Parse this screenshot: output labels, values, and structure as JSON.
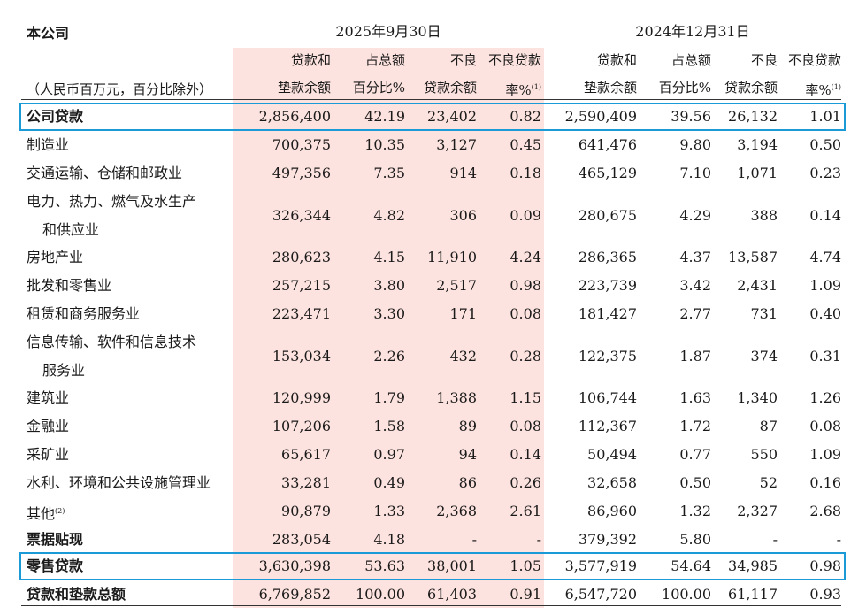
{
  "table": {
    "title": "本公司",
    "unit_note": "（人民币百万元，百分比除外）",
    "periods": [
      "2025年9月30日",
      "2024年12月31日"
    ],
    "col_headers": [
      {
        "l1": "贷款和",
        "l2": "垫款余额",
        "sup": ""
      },
      {
        "l1": "占总额",
        "l2": "百分比%",
        "sup": ""
      },
      {
        "l1": "不良",
        "l2": "贷款余额",
        "sup": ""
      },
      {
        "l1": "不良贷款",
        "l2": "率%",
        "sup": "(1)"
      },
      {
        "l1": "贷款和",
        "l2": "垫款余额",
        "sup": ""
      },
      {
        "l1": "占总额",
        "l2": "百分比%",
        "sup": ""
      },
      {
        "l1": "不良",
        "l2": "贷款余额",
        "sup": ""
      },
      {
        "l1": "不良贷款",
        "l2": "率%",
        "sup": "(1)"
      }
    ],
    "rows": [
      {
        "label": "公司贷款",
        "label2": "",
        "sup": "",
        "bold": true,
        "hl": true,
        "v": [
          "2,856,400",
          "42.19",
          "23,402",
          "0.82",
          "2,590,409",
          "39.56",
          "26,132",
          "1.01"
        ]
      },
      {
        "label": "制造业",
        "label2": "",
        "sup": "",
        "bold": false,
        "hl": false,
        "v": [
          "700,375",
          "10.35",
          "3,127",
          "0.45",
          "641,476",
          "9.80",
          "3,194",
          "0.50"
        ]
      },
      {
        "label": "交通运输、仓储和邮政业",
        "label2": "",
        "sup": "",
        "bold": false,
        "hl": false,
        "v": [
          "497,356",
          "7.35",
          "914",
          "0.18",
          "465,129",
          "7.10",
          "1,071",
          "0.23"
        ]
      },
      {
        "label": "电力、热力、燃气及水生产",
        "label2": "和供应业",
        "sup": "",
        "bold": false,
        "hl": false,
        "v": [
          "326,344",
          "4.82",
          "306",
          "0.09",
          "280,675",
          "4.29",
          "388",
          "0.14"
        ]
      },
      {
        "label": "房地产业",
        "label2": "",
        "sup": "",
        "bold": false,
        "hl": false,
        "v": [
          "280,623",
          "4.15",
          "11,910",
          "4.24",
          "286,365",
          "4.37",
          "13,587",
          "4.74"
        ]
      },
      {
        "label": "批发和零售业",
        "label2": "",
        "sup": "",
        "bold": false,
        "hl": false,
        "v": [
          "257,215",
          "3.80",
          "2,517",
          "0.98",
          "223,739",
          "3.42",
          "2,431",
          "1.09"
        ]
      },
      {
        "label": "租赁和商务服务业",
        "label2": "",
        "sup": "",
        "bold": false,
        "hl": false,
        "v": [
          "223,471",
          "3.30",
          "171",
          "0.08",
          "181,427",
          "2.77",
          "731",
          "0.40"
        ]
      },
      {
        "label": "信息传输、软件和信息技术",
        "label2": "服务业",
        "sup": "",
        "bold": false,
        "hl": false,
        "v": [
          "153,034",
          "2.26",
          "432",
          "0.28",
          "122,375",
          "1.87",
          "374",
          "0.31"
        ]
      },
      {
        "label": "建筑业",
        "label2": "",
        "sup": "",
        "bold": false,
        "hl": false,
        "v": [
          "120,999",
          "1.79",
          "1,388",
          "1.15",
          "106,744",
          "1.63",
          "1,340",
          "1.26"
        ]
      },
      {
        "label": "金融业",
        "label2": "",
        "sup": "",
        "bold": false,
        "hl": false,
        "v": [
          "107,206",
          "1.58",
          "89",
          "0.08",
          "112,367",
          "1.72",
          "87",
          "0.08"
        ]
      },
      {
        "label": "采矿业",
        "label2": "",
        "sup": "",
        "bold": false,
        "hl": false,
        "v": [
          "65,617",
          "0.97",
          "94",
          "0.14",
          "50,494",
          "0.77",
          "550",
          "1.09"
        ]
      },
      {
        "label": "水利、环境和公共设施管理业",
        "label2": "",
        "sup": "",
        "bold": false,
        "hl": false,
        "v": [
          "33,281",
          "0.49",
          "86",
          "0.26",
          "32,658",
          "0.50",
          "52",
          "0.16"
        ]
      },
      {
        "label": "其他",
        "label2": "",
        "sup": "(2)",
        "bold": false,
        "hl": false,
        "v": [
          "90,879",
          "1.33",
          "2,368",
          "2.61",
          "86,960",
          "1.32",
          "2,327",
          "2.68"
        ]
      },
      {
        "label": "票据贴现",
        "label2": "",
        "sup": "",
        "bold": true,
        "hl": false,
        "v": [
          "283,054",
          "4.18",
          "-",
          "-",
          "379,392",
          "5.80",
          "-",
          "-"
        ]
      },
      {
        "label": "零售贷款",
        "label2": "",
        "sup": "",
        "bold": true,
        "hl": true,
        "v": [
          "3,630,398",
          "53.63",
          "38,001",
          "1.05",
          "3,577,919",
          "54.64",
          "34,985",
          "0.98"
        ]
      },
      {
        "label": "贷款和垫款总额",
        "label2": "",
        "sup": "",
        "bold": true,
        "hl": false,
        "v": [
          "6,769,852",
          "100.00",
          "61,403",
          "0.91",
          "6,547,720",
          "100.00",
          "61,117",
          "0.93"
        ]
      }
    ]
  }
}
